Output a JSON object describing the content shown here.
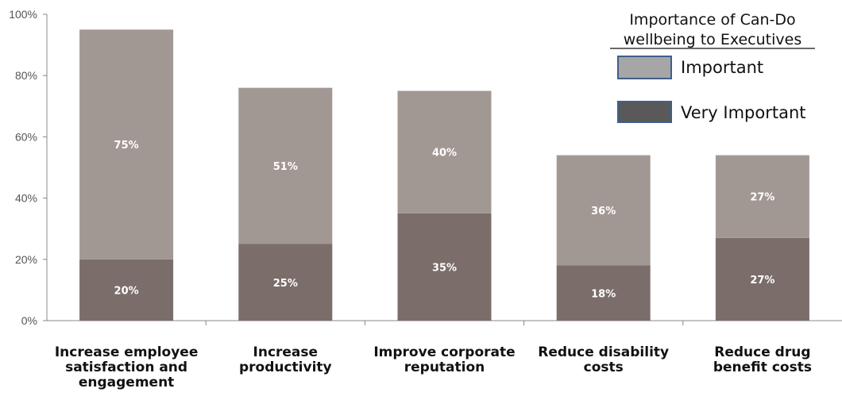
{
  "chart_data": {
    "type": "bar",
    "stacked": true,
    "categories": [
      [
        "Increase employee",
        "satisfaction and",
        "engagement"
      ],
      [
        "Increase",
        "productivity"
      ],
      [
        "Improve corporate",
        "reputation"
      ],
      [
        "Reduce disability",
        "costs"
      ],
      [
        "Reduce drug",
        "benefit costs"
      ]
    ],
    "series": [
      {
        "name": "Very Important",
        "values": [
          20,
          25,
          35,
          18,
          27
        ],
        "labels": [
          "20%",
          "25%",
          "35%",
          "18%",
          "27%"
        ],
        "color": "#7b6d6a"
      },
      {
        "name": "Important",
        "values": [
          75,
          51,
          40,
          36,
          27
        ],
        "labels": [
          "75%",
          "51%",
          "40%",
          "36%",
          "27%"
        ],
        "color": "#a29893"
      }
    ],
    "ylim": [
      0,
      100
    ],
    "yticks": [
      "0%",
      "20%",
      "40%",
      "60%",
      "80%",
      "100%"
    ],
    "grid": false,
    "legend": {
      "title_lines": [
        "Importance of Can-Do",
        "wellbeing to Executives"
      ],
      "entries": [
        {
          "label": "Important",
          "color": "#a6a6a6"
        },
        {
          "label": "Very Important",
          "color": "#595959"
        }
      ],
      "border_color": "#3f5f8a",
      "position": "top-right"
    }
  }
}
